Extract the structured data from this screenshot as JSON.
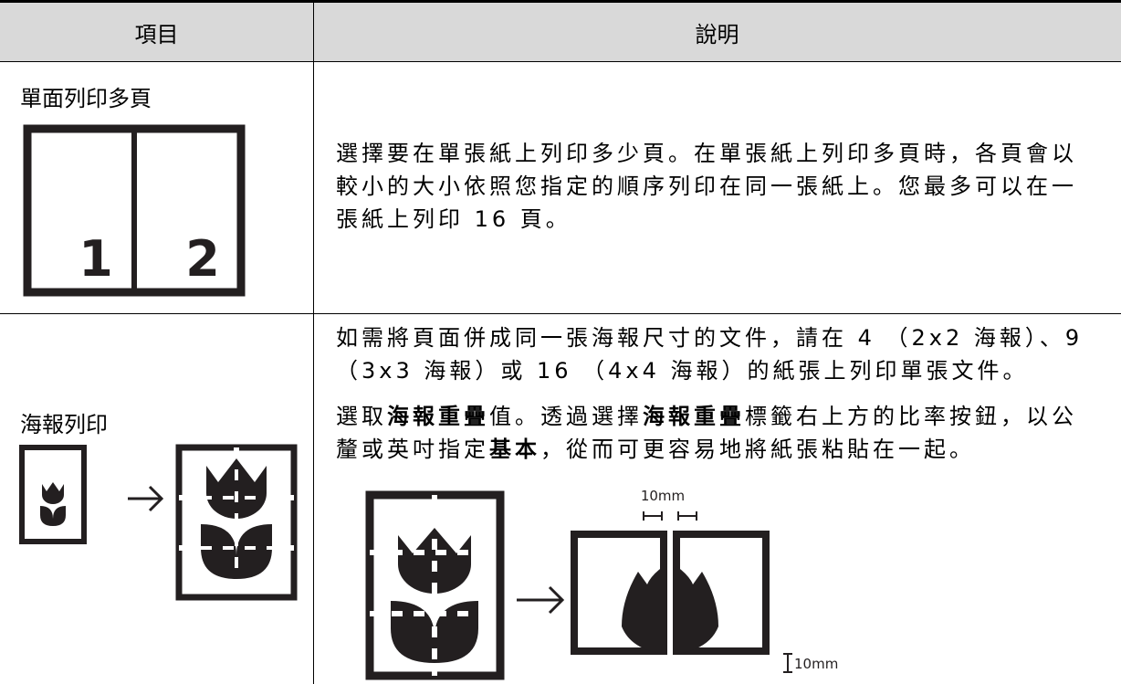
{
  "table": {
    "headers": [
      "項目",
      "說明"
    ],
    "rows": [
      {
        "item": "單面列印多頁",
        "description": [
          [
            {
              "text": "選擇要在單張紙上列印多少頁。在單張紙上列印多頁時，各頁會以較小的大小依照您指定的順序列印在同一張紙上。您最多可以在一張紙上列印 16 頁。",
              "bold": false
            }
          ]
        ],
        "figure_labels": [
          "1",
          "2"
        ]
      },
      {
        "item": "海報列印",
        "description": [
          [
            {
              "text": "如需將頁面併成同一張海報尺寸的文件，請在 4 （2x2 海報）、9（3x3 海報）或 16 （4x4 海報）的紙張上列印單張文件。",
              "bold": false
            }
          ],
          [
            {
              "text": "選取",
              "bold": false
            },
            {
              "text": "海報重疊",
              "bold": true
            },
            {
              "text": "值。透過選擇",
              "bold": false
            },
            {
              "text": "海報重疊",
              "bold": true
            },
            {
              "text": "標籤右上方的比率按鈕，以公釐或英吋指定",
              "bold": false
            },
            {
              "text": "基本",
              "bold": true
            },
            {
              "text": "，從而可更容易地將紙張粘貼在一起。",
              "bold": false
            }
          ]
        ],
        "figure_labels": [
          "10mm",
          "10mm"
        ]
      }
    ]
  }
}
